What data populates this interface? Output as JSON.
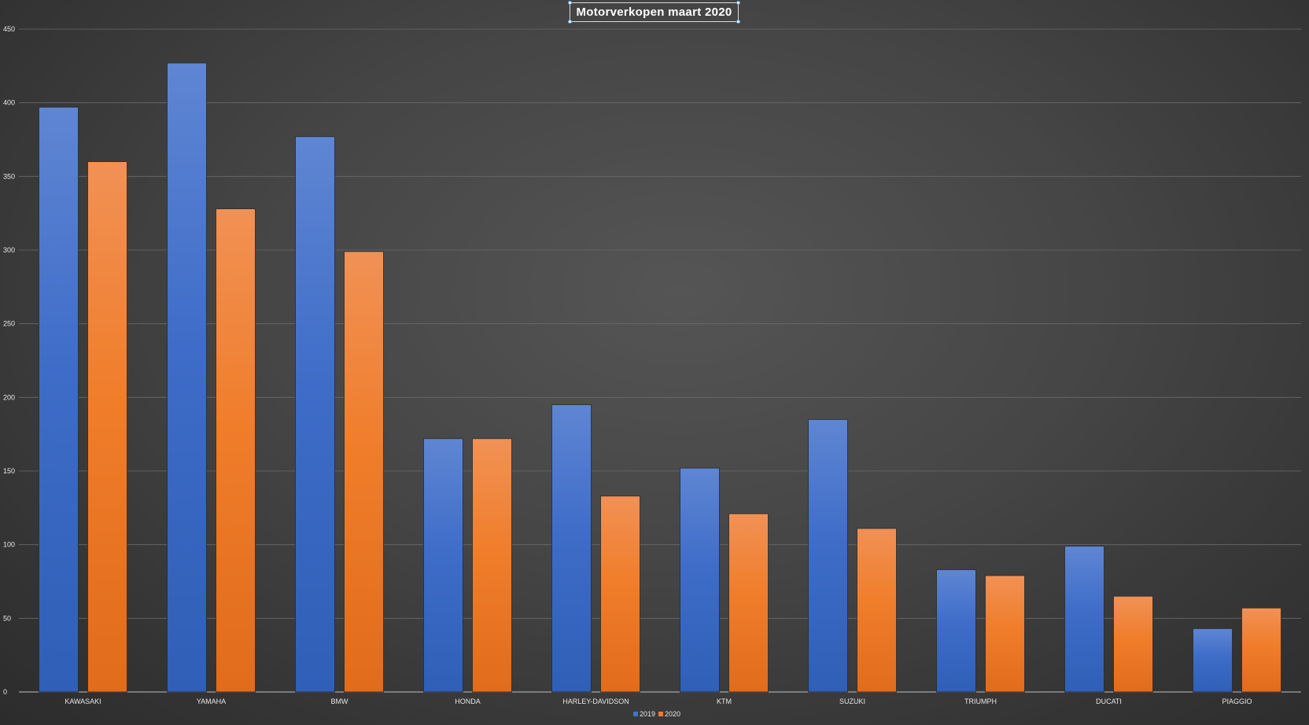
{
  "chart_data": {
    "type": "bar",
    "title": "Motorverkopen maart 2020",
    "categories": [
      "KAWASAKI",
      "YAMAHA",
      "BMW",
      "HONDA",
      "HARLEY-DAVIDSON",
      "KTM",
      "SUZUKI",
      "TRIUMPH",
      "DUCATI",
      "PIAGGIO"
    ],
    "series": [
      {
        "name": "2019",
        "values": [
          397,
          427,
          377,
          172,
          195,
          152,
          185,
          83,
          99,
          43
        ],
        "color": "#4472c4"
      },
      {
        "name": "2020",
        "values": [
          360,
          328,
          299,
          172,
          133,
          121,
          111,
          79,
          65,
          57
        ],
        "color": "#ed7d31"
      }
    ],
    "ylim": [
      0,
      450
    ],
    "yticks": [
      "0",
      "50",
      "100",
      "150",
      "200",
      "250",
      "300",
      "350",
      "400",
      "450"
    ],
    "grid": true,
    "legend": "bottom",
    "xlabel": "",
    "ylabel": ""
  }
}
